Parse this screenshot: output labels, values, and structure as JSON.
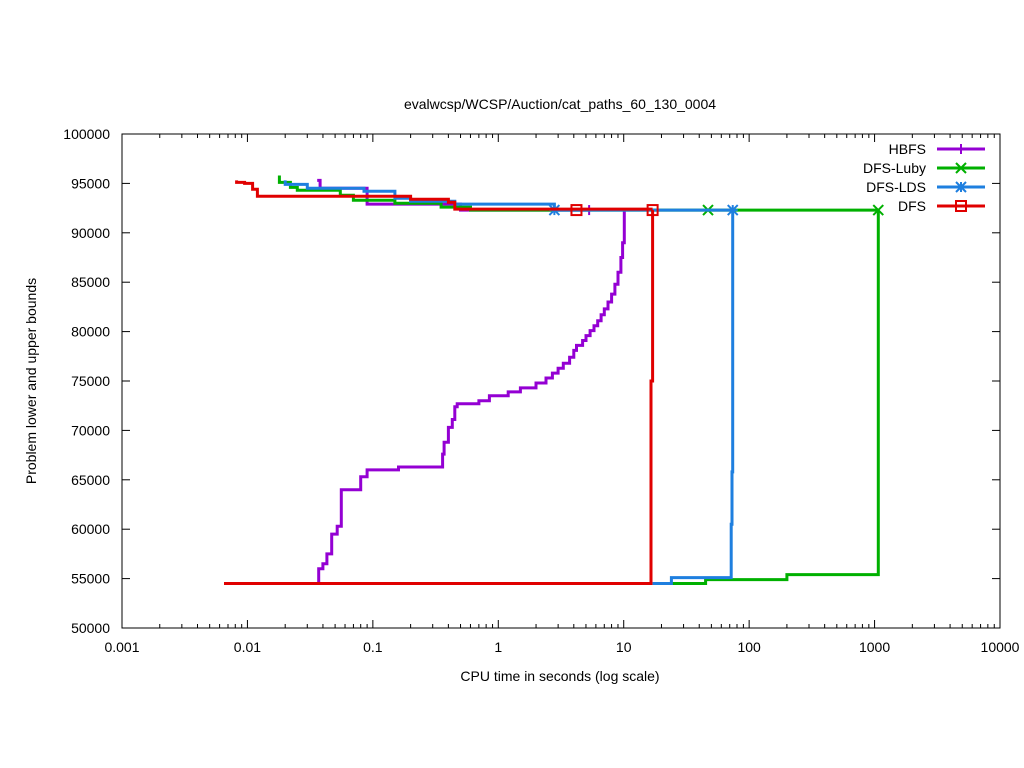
{
  "chart_data": {
    "type": "line",
    "title": "evalwcsp/WCSP/Auction/cat_paths_60_130_0004",
    "xlabel": "CPU time in seconds (log scale)",
    "ylabel": "Problem lower and upper bounds",
    "xscale": "log",
    "xlim": [
      0.001,
      10000
    ],
    "ylim": [
      50000,
      100000
    ],
    "xticks": [
      0.001,
      0.01,
      0.1,
      1,
      10,
      100,
      1000,
      10000
    ],
    "xtick_labels": [
      "0.001",
      "0.01",
      "0.1",
      "1",
      "10",
      "100",
      "1000",
      "10000"
    ],
    "yticks": [
      50000,
      55000,
      60000,
      65000,
      70000,
      75000,
      80000,
      85000,
      90000,
      95000,
      100000
    ],
    "ytick_labels": [
      "50000",
      "55000",
      "60000",
      "65000",
      "70000",
      "75000",
      "80000",
      "85000",
      "90000",
      "95000",
      "100000"
    ],
    "grid": false,
    "legend_position": "top-right",
    "series": [
      {
        "name": "HBFS",
        "color": "#9400d3",
        "marker": "plus",
        "markers": [
          [
            5.3,
            92300
          ]
        ],
        "lines": [
          [
            [
              0.036,
              95300
            ],
            [
              0.038,
              95300
            ],
            [
              0.038,
              94500
            ],
            [
              0.09,
              94500
            ],
            [
              0.09,
              92900
            ],
            [
              0.5,
              92900
            ],
            [
              0.5,
              92300
            ],
            [
              5.3,
              92300
            ]
          ],
          [
            [
              0.037,
              54600
            ],
            [
              0.037,
              56000
            ],
            [
              0.04,
              56000
            ],
            [
              0.04,
              56500
            ],
            [
              0.043,
              56500
            ],
            [
              0.043,
              57500
            ],
            [
              0.047,
              57500
            ],
            [
              0.047,
              59500
            ],
            [
              0.052,
              59500
            ],
            [
              0.052,
              60300
            ],
            [
              0.056,
              60300
            ],
            [
              0.056,
              64000
            ],
            [
              0.08,
              64000
            ],
            [
              0.08,
              65300
            ],
            [
              0.09,
              65300
            ],
            [
              0.09,
              66000
            ],
            [
              0.16,
              66000
            ],
            [
              0.16,
              66300
            ],
            [
              0.36,
              66300
            ],
            [
              0.36,
              67600
            ],
            [
              0.37,
              67600
            ],
            [
              0.37,
              68800
            ],
            [
              0.4,
              68800
            ],
            [
              0.4,
              70300
            ],
            [
              0.43,
              70300
            ],
            [
              0.43,
              71100
            ],
            [
              0.45,
              71100
            ],
            [
              0.45,
              72400
            ],
            [
              0.47,
              72400
            ],
            [
              0.47,
              72700
            ],
            [
              0.7,
              72700
            ],
            [
              0.7,
              73000
            ],
            [
              0.85,
              73000
            ],
            [
              0.85,
              73500
            ],
            [
              1.2,
              73500
            ],
            [
              1.2,
              73900
            ],
            [
              1.5,
              73900
            ],
            [
              1.5,
              74300
            ],
            [
              2.0,
              74300
            ],
            [
              2.0,
              74800
            ],
            [
              2.4,
              74800
            ],
            [
              2.4,
              75300
            ],
            [
              2.7,
              75300
            ],
            [
              2.7,
              75800
            ],
            [
              3.0,
              75800
            ],
            [
              3.0,
              76300
            ],
            [
              3.3,
              76300
            ],
            [
              3.3,
              76800
            ],
            [
              3.7,
              76800
            ],
            [
              3.7,
              77400
            ],
            [
              4.0,
              77400
            ],
            [
              4.0,
              78100
            ],
            [
              4.2,
              78100
            ],
            [
              4.2,
              78600
            ],
            [
              4.7,
              78600
            ],
            [
              4.7,
              79100
            ],
            [
              5.0,
              79100
            ],
            [
              5.0,
              79600
            ],
            [
              5.4,
              79600
            ],
            [
              5.4,
              80100
            ],
            [
              5.8,
              80100
            ],
            [
              5.8,
              80600
            ],
            [
              6.2,
              80600
            ],
            [
              6.2,
              81100
            ],
            [
              6.6,
              81100
            ],
            [
              6.6,
              81700
            ],
            [
              7.0,
              81700
            ],
            [
              7.0,
              82300
            ],
            [
              7.5,
              82300
            ],
            [
              7.5,
              83000
            ],
            [
              8.0,
              83000
            ],
            [
              8.0,
              83800
            ],
            [
              8.5,
              83800
            ],
            [
              8.5,
              84800
            ],
            [
              9.0,
              84800
            ],
            [
              9.0,
              86000
            ],
            [
              9.5,
              86000
            ],
            [
              9.5,
              87500
            ],
            [
              9.8,
              87500
            ],
            [
              9.8,
              89000
            ],
            [
              10.1,
              89000
            ],
            [
              10.1,
              92500
            ]
          ]
        ]
      },
      {
        "name": "DFS-Luby",
        "color": "#00b000",
        "marker": "x",
        "markers": [
          [
            47,
            92300
          ],
          [
            1070,
            92300
          ]
        ],
        "lines": [
          [
            [
              0.018,
              95800
            ],
            [
              0.018,
              95100
            ],
            [
              0.022,
              95100
            ],
            [
              0.022,
              94600
            ],
            [
              0.025,
              94600
            ],
            [
              0.025,
              94300
            ],
            [
              0.055,
              94300
            ],
            [
              0.055,
              93800
            ],
            [
              0.07,
              93800
            ],
            [
              0.07,
              93300
            ],
            [
              0.15,
              93300
            ],
            [
              0.15,
              93000
            ],
            [
              0.35,
              93000
            ],
            [
              0.35,
              92600
            ],
            [
              0.6,
              92600
            ],
            [
              0.6,
              92300
            ],
            [
              1070,
              92300
            ]
          ],
          [
            [
              24,
              54500
            ],
            [
              45,
              54500
            ],
            [
              45,
              54900
            ],
            [
              200,
              54900
            ],
            [
              200,
              55400
            ],
            [
              1070,
              55400
            ],
            [
              1070,
              92300
            ]
          ]
        ]
      },
      {
        "name": "DFS-LDS",
        "color": "#1e7fdf",
        "marker": "star",
        "markers": [
          [
            2.8,
            92300
          ],
          [
            74,
            92300
          ]
        ],
        "lines": [
          [
            [
              0.02,
              95300
            ],
            [
              0.02,
              94900
            ],
            [
              0.03,
              94900
            ],
            [
              0.03,
              94500
            ],
            [
              0.085,
              94500
            ],
            [
              0.085,
              94200
            ],
            [
              0.15,
              94200
            ],
            [
              0.15,
              93500
            ],
            [
              0.2,
              93500
            ],
            [
              0.2,
              93200
            ],
            [
              0.45,
              93200
            ],
            [
              0.45,
              92900
            ],
            [
              2.8,
              92900
            ],
            [
              2.8,
              92300
            ],
            [
              74,
              92300
            ]
          ],
          [
            [
              17,
              54500
            ],
            [
              24,
              54500
            ],
            [
              24,
              55100
            ],
            [
              72,
              55100
            ],
            [
              72,
              60500
            ],
            [
              73,
              60500
            ],
            [
              73,
              65800
            ],
            [
              74,
              65800
            ],
            [
              74,
              92300
            ]
          ]
        ]
      },
      {
        "name": "DFS",
        "color": "#e00000",
        "marker": "square",
        "markers": [
          [
            4.2,
            92300
          ],
          [
            17,
            92300
          ]
        ],
        "lines": [
          [
            [
              0.0082,
              95300
            ],
            [
              0.0082,
              95100
            ],
            [
              0.0095,
              95100
            ],
            [
              0.0095,
              95000
            ],
            [
              0.011,
              95000
            ],
            [
              0.011,
              94400
            ],
            [
              0.012,
              94400
            ],
            [
              0.012,
              93700
            ],
            [
              0.2,
              93700
            ],
            [
              0.2,
              93400
            ],
            [
              0.4,
              93400
            ],
            [
              0.4,
              93100
            ],
            [
              0.45,
              93100
            ],
            [
              0.45,
              92400
            ],
            [
              17,
              92400
            ]
          ],
          [
            [
              0.0065,
              54500
            ],
            [
              16.5,
              54500
            ],
            [
              16.5,
              75000
            ],
            [
              17,
              75000
            ],
            [
              17,
              92300
            ]
          ]
        ]
      }
    ]
  }
}
